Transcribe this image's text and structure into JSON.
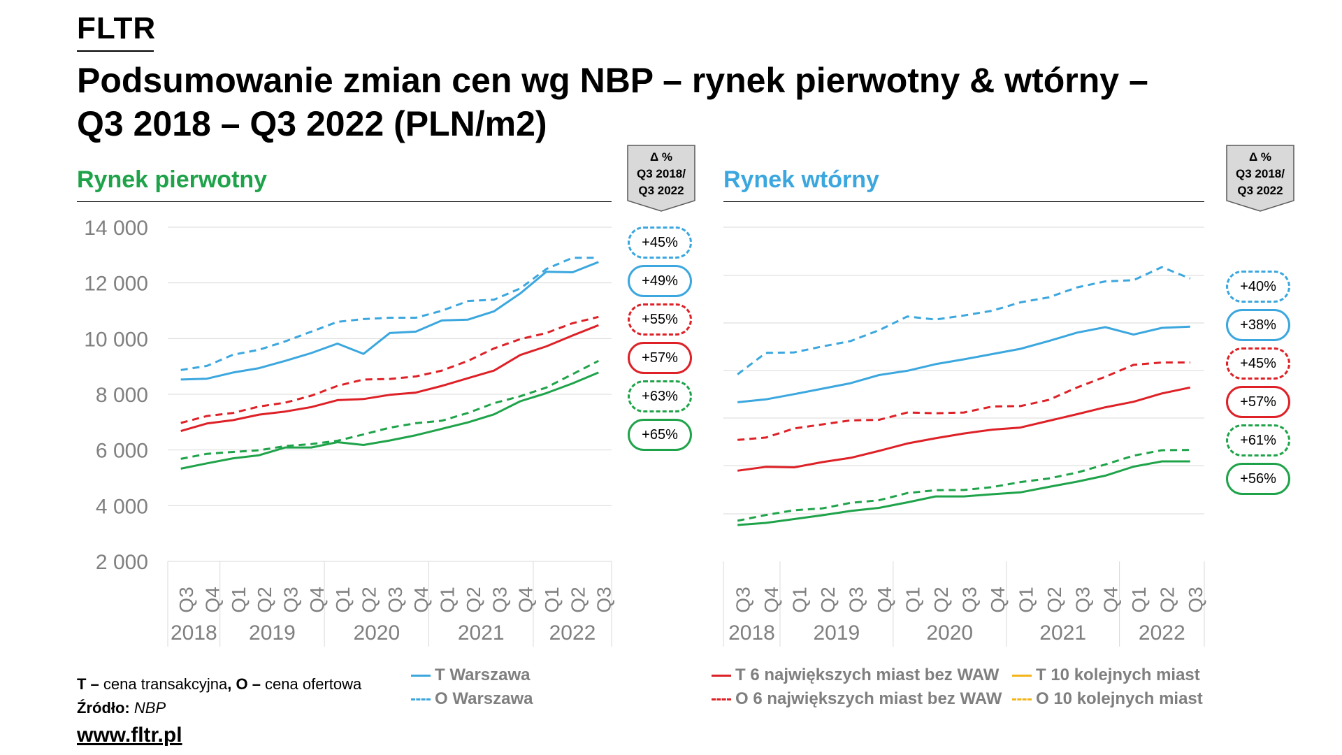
{
  "brand": "FLTR",
  "title_line1": "Podsumowanie zmian cen wg NBP – rynek pierwotny & wtórny –",
  "title_line2": "Q3 2018 – Q3 2022 (PLN/m2)",
  "colors": {
    "warsaw": "#3ba7de",
    "six": "#dd2127",
    "ten": "#1fa34a",
    "ten_legend": "#f3b51a",
    "primary_title": "#1fa34a",
    "secondary_title": "#3ba7de"
  },
  "delta_header": {
    "line1": "Δ %",
    "line2": "Q3 2018/",
    "line3": "Q3 2022"
  },
  "chart_data": [
    {
      "type": "line",
      "title": "Rynek pierwotny",
      "categories": [
        "Q3",
        "Q4",
        "Q1",
        "Q2",
        "Q3",
        "Q4",
        "Q1",
        "Q2",
        "Q3",
        "Q4",
        "Q1",
        "Q2",
        "Q3",
        "Q4",
        "Q1",
        "Q2",
        "Q3"
      ],
      "years": [
        {
          "label": "2018",
          "start": 0,
          "count": 2
        },
        {
          "label": "2019",
          "start": 2,
          "count": 4
        },
        {
          "label": "2020",
          "start": 6,
          "count": 4
        },
        {
          "label": "2021",
          "start": 10,
          "count": 4
        },
        {
          "label": "2022",
          "start": 14,
          "count": 3
        }
      ],
      "yticks": [
        "14 000",
        "12 000",
        "10 000",
        "8 000",
        "6 000",
        "4 000",
        "2 000"
      ],
      "ylim": [
        2000,
        14000
      ],
      "grid": true,
      "series": [
        {
          "name": "O Warszawa",
          "color_key": "warsaw",
          "dashed": true,
          "values": [
            8870,
            9020,
            9420,
            9600,
            9900,
            10250,
            10600,
            10700,
            10750,
            10750,
            11000,
            11350,
            11400,
            11800,
            12500,
            12900,
            12900
          ]
        },
        {
          "name": "T Warszawa",
          "color_key": "warsaw",
          "dashed": false,
          "values": [
            8530,
            8560,
            8780,
            8940,
            9200,
            9480,
            9820,
            9450,
            10200,
            10250,
            10650,
            10680,
            10980,
            11620,
            12400,
            12380,
            12750
          ]
        },
        {
          "name": "O 6 największych miast bez WAW",
          "color_key": "six",
          "dashed": true,
          "values": [
            6970,
            7220,
            7330,
            7560,
            7700,
            7950,
            8300,
            8530,
            8550,
            8640,
            8850,
            9200,
            9650,
            9980,
            10200,
            10550,
            10780
          ]
        },
        {
          "name": "T 6 największych miast bez WAW",
          "color_key": "six",
          "dashed": false,
          "values": [
            6680,
            6950,
            7070,
            7270,
            7380,
            7540,
            7790,
            7830,
            7980,
            8060,
            8300,
            8580,
            8850,
            9410,
            9720,
            10110,
            10480
          ]
        },
        {
          "name": "O 10 kolejnych miast",
          "color_key": "ten",
          "dashed": true,
          "values": [
            5680,
            5860,
            5930,
            5990,
            6140,
            6210,
            6330,
            6560,
            6800,
            6960,
            7050,
            7330,
            7680,
            7930,
            8240,
            8720,
            9200
          ]
        },
        {
          "name": "T 10 kolejnych miast",
          "color_key": "ten",
          "dashed": false,
          "values": [
            5330,
            5520,
            5700,
            5810,
            6090,
            6090,
            6280,
            6180,
            6340,
            6530,
            6760,
            6990,
            7280,
            7750,
            8040,
            8390,
            8780
          ]
        }
      ],
      "deltas": [
        {
          "label": "+45%",
          "color_key": "warsaw",
          "dashed": true
        },
        {
          "label": "+49%",
          "color_key": "warsaw",
          "dashed": false
        },
        {
          "label": "+55%",
          "color_key": "six",
          "dashed": true
        },
        {
          "label": "+57%",
          "color_key": "six",
          "dashed": false
        },
        {
          "label": "+63%",
          "color_key": "ten",
          "dashed": true
        },
        {
          "label": "+65%",
          "color_key": "ten",
          "dashed": false
        }
      ]
    },
    {
      "type": "line",
      "title": "Rynek wtórny",
      "categories": [
        "Q3",
        "Q4",
        "Q1",
        "Q2",
        "Q3",
        "Q4",
        "Q1",
        "Q2",
        "Q3",
        "Q4",
        "Q1",
        "Q2",
        "Q3",
        "Q4",
        "Q1",
        "Q2",
        "Q3"
      ],
      "years": [
        {
          "label": "2018",
          "start": 0,
          "count": 2
        },
        {
          "label": "2019",
          "start": 2,
          "count": 4
        },
        {
          "label": "2020",
          "start": 6,
          "count": 4
        },
        {
          "label": "2021",
          "start": 10,
          "count": 4
        },
        {
          "label": "2022",
          "start": 14,
          "count": 3
        }
      ],
      "ylim": [
        0,
        1
      ],
      "grid": true,
      "series": [
        {
          "name": "O Warszawa",
          "color_key": "warsaw",
          "dashed": true,
          "values": [
            0.585,
            0.675,
            0.677,
            0.702,
            0.725,
            0.77,
            0.828,
            0.815,
            0.832,
            0.852,
            0.887,
            0.908,
            0.95,
            0.975,
            0.98,
            1.035,
            0.987
          ]
        },
        {
          "name": "T Warszawa",
          "color_key": "warsaw",
          "dashed": false,
          "values": [
            0.468,
            0.48,
            0.502,
            0.525,
            0.548,
            0.582,
            0.6,
            0.628,
            0.648,
            0.67,
            0.692,
            0.725,
            0.76,
            0.783,
            0.752,
            0.78,
            0.785
          ]
        },
        {
          "name": "O 6 największych miast bez WAW",
          "color_key": "six",
          "dashed": true,
          "values": [
            0.31,
            0.32,
            0.358,
            0.375,
            0.392,
            0.394,
            0.425,
            0.422,
            0.425,
            0.45,
            0.452,
            0.478,
            0.53,
            0.575,
            0.625,
            0.635,
            0.635
          ]
        },
        {
          "name": "T 6 największych miast bez WAW",
          "color_key": "six",
          "dashed": false,
          "values": [
            0.181,
            0.197,
            0.195,
            0.217,
            0.235,
            0.264,
            0.295,
            0.317,
            0.337,
            0.353,
            0.362,
            0.39,
            0.418,
            0.447,
            0.47,
            0.505,
            0.53
          ]
        },
        {
          "name": "O 10 kolejnych miast",
          "color_key": "ten",
          "dashed": true,
          "values": [
            -0.029,
            -0.005,
            0.015,
            0.023,
            0.046,
            0.057,
            0.087,
            0.099,
            0.1,
            0.112,
            0.133,
            0.148,
            0.173,
            0.207,
            0.244,
            0.267,
            0.268
          ]
        },
        {
          "name": "T 10 kolejnych miast",
          "color_key": "ten",
          "dashed": false,
          "values": [
            -0.047,
            -0.038,
            -0.022,
            -0.006,
            0.012,
            0.025,
            0.048,
            0.073,
            0.073,
            0.082,
            0.09,
            0.113,
            0.135,
            0.16,
            0.198,
            0.22,
            0.22
          ]
        }
      ],
      "deltas": [
        {
          "label": "+40%",
          "color_key": "warsaw",
          "dashed": true
        },
        {
          "label": "+38%",
          "color_key": "warsaw",
          "dashed": false
        },
        {
          "label": "+45%",
          "color_key": "six",
          "dashed": true
        },
        {
          "label": "+57%",
          "color_key": "six",
          "dashed": false
        },
        {
          "label": "+61%",
          "color_key": "ten",
          "dashed": true
        },
        {
          "label": "+56%",
          "color_key": "ten",
          "dashed": false
        }
      ]
    }
  ],
  "notes": {
    "t_key": "T –",
    "t_text": " cena transakcyjna",
    "comma": ",",
    "o_key": " O –",
    "o_text": " cena ofertowa",
    "source_key": "Źródło:",
    "source_val": " NBP"
  },
  "url": "www.fltr.pl",
  "legend": [
    {
      "label": "T Warszawa",
      "color_key": "warsaw",
      "dashed": false
    },
    {
      "label": "O Warszawa",
      "color_key": "warsaw",
      "dashed": true
    },
    {
      "label": "T 6 największych miast bez WAW",
      "color_key": "six",
      "dashed": false
    },
    {
      "label": "O 6 największych miast bez WAW",
      "color_key": "six",
      "dashed": true
    },
    {
      "label": "T 10 kolejnych miast",
      "color_key": "ten_legend",
      "dashed": false
    },
    {
      "label": "O 10 kolejnych miast",
      "color_key": "ten_legend",
      "dashed": true
    }
  ]
}
